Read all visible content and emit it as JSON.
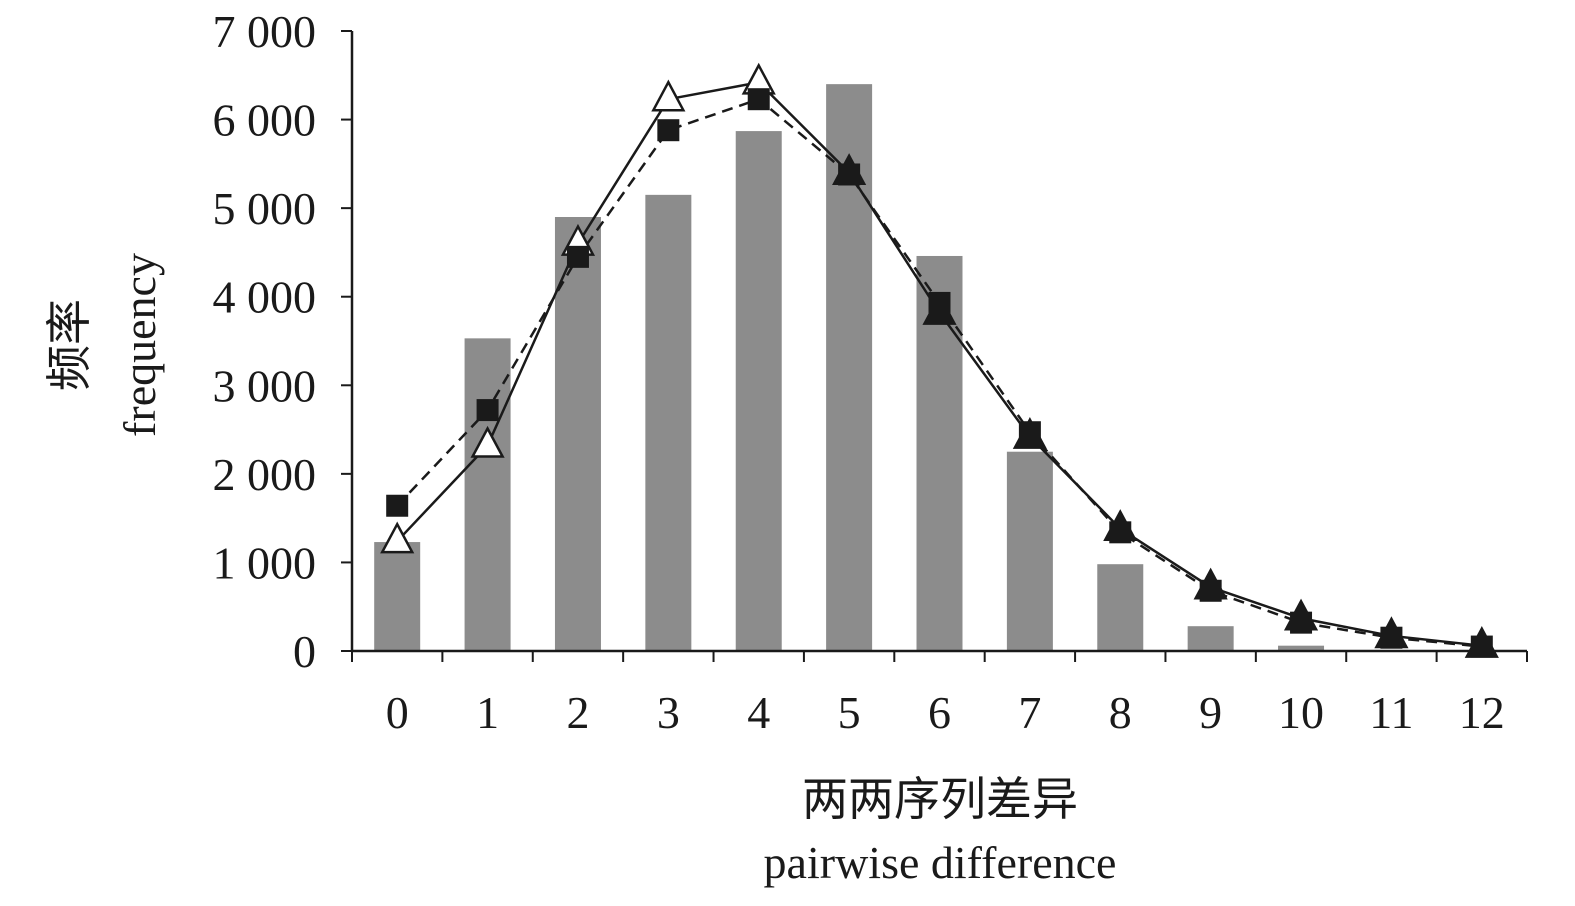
{
  "chart_data": {
    "type": "bar",
    "categories": [
      "0",
      "1",
      "2",
      "3",
      "4",
      "5",
      "6",
      "7",
      "8",
      "9",
      "10",
      "11",
      "12"
    ],
    "y_ticks": [
      0,
      1000,
      2000,
      3000,
      4000,
      5000,
      6000,
      7000
    ],
    "y_tick_labels": [
      "0",
      "1 000",
      "2 000",
      "3 000",
      "4 000",
      "5 000",
      "6 000",
      "7 000"
    ],
    "ylim": [
      0,
      7000
    ],
    "xlabel_cn": "两两序列差异",
    "xlabel_en": "pairwise difference",
    "ylabel_cn": "频率",
    "ylabel_en": "frequency",
    "series": [
      {
        "kind": "bar",
        "color": "#8c8c8c",
        "values": [
          1230,
          3530,
          4900,
          5150,
          5870,
          6400,
          4460,
          2250,
          980,
          280,
          60,
          0,
          0
        ]
      },
      {
        "kind": "line",
        "marker": "square",
        "line_style": "dashed",
        "color": "#1a1a1a",
        "values": [
          1640,
          2720,
          4450,
          5880,
          6230,
          5380,
          3930,
          2470,
          1340,
          680,
          320,
          150,
          50
        ]
      },
      {
        "kind": "line",
        "marker": "triangle",
        "line_style": "solid",
        "color": "#1a1a1a",
        "values": [
          1240,
          2320,
          4600,
          6230,
          6420,
          5400,
          3820,
          2420,
          1380,
          720,
          370,
          170,
          60
        ]
      }
    ]
  }
}
